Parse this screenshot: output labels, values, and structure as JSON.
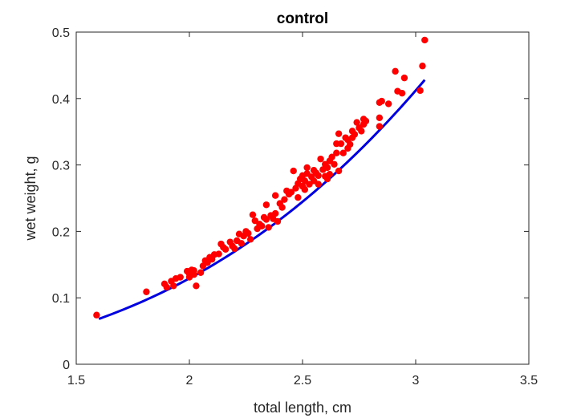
{
  "chart_data": {
    "type": "scatter",
    "title": "control",
    "xlabel": "total length, cm",
    "ylabel": "wet weight, g",
    "xlim": [
      1.5,
      3.5
    ],
    "ylim": [
      0,
      0.5
    ],
    "xticks": [
      1.5,
      2,
      2.5,
      3,
      3.5
    ],
    "yticks": [
      0,
      0.1,
      0.2,
      0.3,
      0.4,
      0.5
    ],
    "xtick_labels": [
      "1.5",
      "2",
      "2.5",
      "3",
      "3.5"
    ],
    "ytick_labels": [
      "0",
      "0.1",
      "0.2",
      "0.3",
      "0.4",
      "0.5"
    ],
    "grid": false,
    "colors": {
      "points": "#ff0000",
      "fit": "#0000e0",
      "axes": "#262626"
    },
    "series": [
      {
        "kind": "scatter",
        "points": [
          [
            1.59,
            0.074
          ],
          [
            1.81,
            0.109
          ],
          [
            1.89,
            0.121
          ],
          [
            1.9,
            0.116
          ],
          [
            1.92,
            0.125
          ],
          [
            1.93,
            0.118
          ],
          [
            1.94,
            0.129
          ],
          [
            1.96,
            0.131
          ],
          [
            1.99,
            0.14
          ],
          [
            2.0,
            0.136
          ],
          [
            2.0,
            0.131
          ],
          [
            2.01,
            0.142
          ],
          [
            2.02,
            0.141
          ],
          [
            2.02,
            0.135
          ],
          [
            2.03,
            0.118
          ],
          [
            2.05,
            0.138
          ],
          [
            2.06,
            0.148
          ],
          [
            2.07,
            0.156
          ],
          [
            2.08,
            0.153
          ],
          [
            2.09,
            0.161
          ],
          [
            2.1,
            0.158
          ],
          [
            2.11,
            0.165
          ],
          [
            2.13,
            0.166
          ],
          [
            2.14,
            0.181
          ],
          [
            2.15,
            0.176
          ],
          [
            2.16,
            0.173
          ],
          [
            2.18,
            0.184
          ],
          [
            2.19,
            0.178
          ],
          [
            2.2,
            0.174
          ],
          [
            2.21,
            0.186
          ],
          [
            2.22,
            0.196
          ],
          [
            2.23,
            0.182
          ],
          [
            2.24,
            0.193
          ],
          [
            2.25,
            0.2
          ],
          [
            2.26,
            0.197
          ],
          [
            2.27,
            0.188
          ],
          [
            2.28,
            0.225
          ],
          [
            2.29,
            0.216
          ],
          [
            2.3,
            0.204
          ],
          [
            2.31,
            0.211
          ],
          [
            2.32,
            0.208
          ],
          [
            2.33,
            0.221
          ],
          [
            2.34,
            0.24
          ],
          [
            2.34,
            0.218
          ],
          [
            2.35,
            0.206
          ],
          [
            2.36,
            0.224
          ],
          [
            2.37,
            0.219
          ],
          [
            2.38,
            0.227
          ],
          [
            2.38,
            0.254
          ],
          [
            2.39,
            0.215
          ],
          [
            2.4,
            0.242
          ],
          [
            2.41,
            0.236
          ],
          [
            2.42,
            0.248
          ],
          [
            2.43,
            0.261
          ],
          [
            2.44,
            0.256
          ],
          [
            2.45,
            0.259
          ],
          [
            2.46,
            0.291
          ],
          [
            2.47,
            0.265
          ],
          [
            2.48,
            0.272
          ],
          [
            2.48,
            0.251
          ],
          [
            2.49,
            0.279
          ],
          [
            2.5,
            0.284
          ],
          [
            2.5,
            0.268
          ],
          [
            2.51,
            0.276
          ],
          [
            2.51,
            0.263
          ],
          [
            2.52,
            0.296
          ],
          [
            2.52,
            0.287
          ],
          [
            2.53,
            0.271
          ],
          [
            2.54,
            0.282
          ],
          [
            2.55,
            0.292
          ],
          [
            2.55,
            0.276
          ],
          [
            2.56,
            0.288
          ],
          [
            2.57,
            0.284
          ],
          [
            2.57,
            0.271
          ],
          [
            2.58,
            0.309
          ],
          [
            2.59,
            0.293
          ],
          [
            2.6,
            0.283
          ],
          [
            2.6,
            0.301
          ],
          [
            2.61,
            0.296
          ],
          [
            2.61,
            0.279
          ],
          [
            2.62,
            0.306
          ],
          [
            2.62,
            0.286
          ],
          [
            2.63,
            0.312
          ],
          [
            2.64,
            0.301
          ],
          [
            2.65,
            0.332
          ],
          [
            2.65,
            0.318
          ],
          [
            2.66,
            0.347
          ],
          [
            2.66,
            0.291
          ],
          [
            2.67,
            0.332
          ],
          [
            2.68,
            0.318
          ],
          [
            2.69,
            0.341
          ],
          [
            2.7,
            0.338
          ],
          [
            2.7,
            0.325
          ],
          [
            2.71,
            0.331
          ],
          [
            2.72,
            0.351
          ],
          [
            2.72,
            0.341
          ],
          [
            2.73,
            0.346
          ],
          [
            2.74,
            0.364
          ],
          [
            2.75,
            0.356
          ],
          [
            2.76,
            0.351
          ],
          [
            2.77,
            0.369
          ],
          [
            2.77,
            0.361
          ],
          [
            2.78,
            0.366
          ],
          [
            2.84,
            0.394
          ],
          [
            2.84,
            0.371
          ],
          [
            2.85,
            0.396
          ],
          [
            2.84,
            0.358
          ],
          [
            2.88,
            0.392
          ],
          [
            2.91,
            0.441
          ],
          [
            2.92,
            0.411
          ],
          [
            2.94,
            0.408
          ],
          [
            2.95,
            0.431
          ],
          [
            3.02,
            0.412
          ],
          [
            3.03,
            0.449
          ],
          [
            3.04,
            0.488
          ]
        ]
      },
      {
        "kind": "line",
        "function": "a*x^b",
        "a": 0.0178,
        "b": 2.86,
        "x_range": [
          1.6,
          3.04
        ]
      }
    ]
  }
}
